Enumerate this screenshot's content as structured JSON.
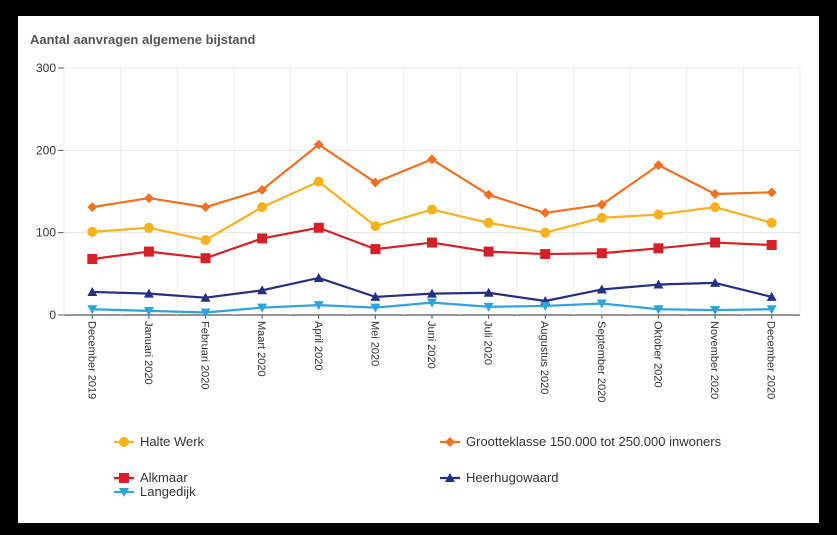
{
  "chart_data": {
    "type": "line",
    "title": "Aantal aanvragen algemene bijstand",
    "xlabel": "",
    "ylabel": "",
    "ylim": [
      0,
      300
    ],
    "yticks": [
      0,
      100,
      200,
      300
    ],
    "grid": true,
    "legend_position": "bottom",
    "categories": [
      "December 2019",
      "Januari 2020",
      "Februari 2020",
      "Maart 2020",
      "April 2020",
      "Mei 2020",
      "Juni 2020",
      "Juli 2020",
      "Augustus 2020",
      "September 2020",
      "Oktober 2020",
      "November 2020",
      "December 2020"
    ],
    "series": [
      {
        "name": "Halte Werk",
        "color": "#f5b21b",
        "marker": "circle",
        "values": [
          101,
          106,
          91,
          131,
          162,
          108,
          128,
          112,
          100,
          118,
          122,
          131,
          112
        ]
      },
      {
        "name": "Grootteklasse 150.000 tot 250.000 inwoners",
        "color": "#ee7023",
        "marker": "diamond",
        "values": [
          131,
          142,
          131,
          152,
          207,
          161,
          189,
          146,
          124,
          134,
          182,
          147,
          149
        ]
      },
      {
        "name": "Alkmaar",
        "color": "#d42128",
        "marker": "square",
        "values": [
          68,
          77,
          69,
          93,
          106,
          80,
          88,
          77,
          74,
          75,
          81,
          88,
          85
        ]
      },
      {
        "name": "Heerhugowaard",
        "color": "#253083",
        "marker": "triangle-up",
        "values": [
          28,
          26,
          21,
          30,
          45,
          22,
          26,
          27,
          17,
          31,
          37,
          39,
          22
        ]
      },
      {
        "name": "Langedijk",
        "color": "#2ea3dc",
        "marker": "triangle-down",
        "values": [
          7,
          5,
          3,
          9,
          12,
          9,
          15,
          10,
          11,
          14,
          7,
          6,
          7
        ]
      }
    ]
  }
}
